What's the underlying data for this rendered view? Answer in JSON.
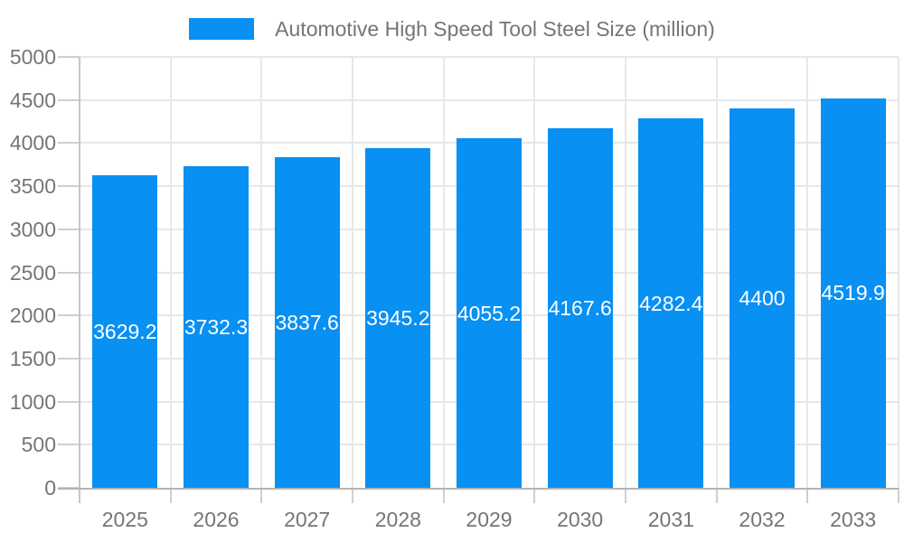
{
  "chart_data": {
    "type": "bar",
    "title": "Automotive High Speed Tool Steel Size (million)",
    "categories": [
      "2025",
      "2026",
      "2027",
      "2028",
      "2029",
      "2030",
      "2031",
      "2032",
      "2033"
    ],
    "values": [
      3629.2,
      3732.3,
      3837.6,
      3945.2,
      4055.2,
      4167.6,
      4282.4,
      4400,
      4519.9
    ],
    "value_labels": [
      "3629.2",
      "3732.3",
      "3837.6",
      "3945.2",
      "4055.2",
      "4167.6",
      "4282.4",
      "4400",
      "4519.9"
    ],
    "xlabel": "",
    "ylabel": "",
    "ylim": [
      0,
      5000
    ],
    "y_ticks": [
      0,
      500,
      1000,
      1500,
      2000,
      2500,
      3000,
      3500,
      4000,
      4500,
      5000
    ],
    "grid": true,
    "legend_position": "top-center",
    "colors": {
      "bar": "#0990f3",
      "value_text": "#ffffff",
      "axis_text": "#757575",
      "grid_line": "#e7e7e7",
      "x_axis_line": "#b3b3b3",
      "y_axis_line": "#c6c6c6",
      "tick_line": "#cfcfcf"
    }
  }
}
